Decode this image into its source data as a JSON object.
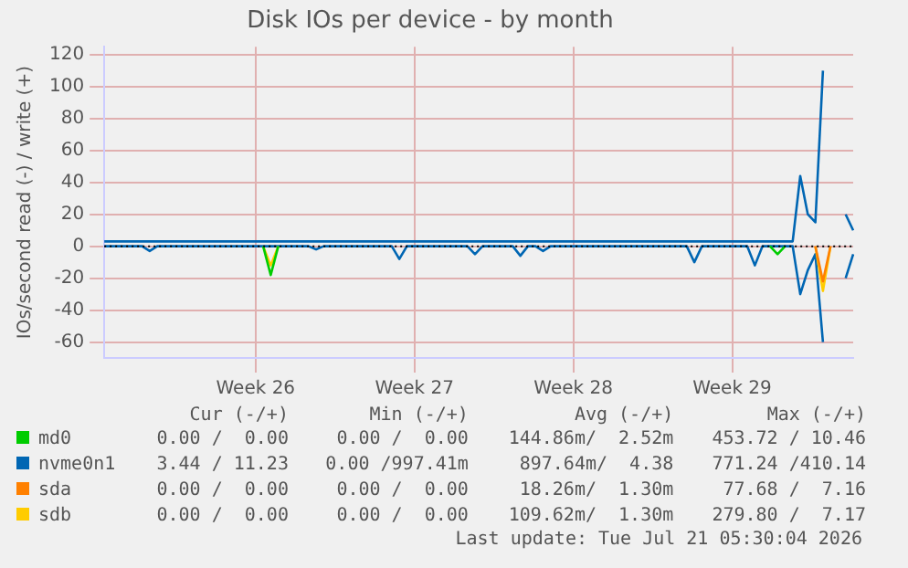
{
  "chart_data": {
    "type": "line",
    "title": "Disk IOs per device - by month",
    "ylabel": "IOs/second read (-) / write (+)",
    "categories": [
      null,
      null,
      null,
      null,
      null,
      null,
      null,
      null,
      null,
      null,
      null,
      null,
      null,
      null,
      null,
      null,
      null,
      null,
      null,
      null,
      "Week 26",
      null,
      null,
      null,
      null,
      null,
      null,
      null,
      null,
      null,
      null,
      null,
      null,
      null,
      null,
      null,
      null,
      null,
      null,
      null,
      null,
      "Week 27",
      null,
      null,
      null,
      null,
      null,
      null,
      null,
      null,
      null,
      null,
      null,
      null,
      null,
      null,
      null,
      null,
      null,
      null,
      null,
      null,
      "Week 28",
      null,
      null,
      null,
      null,
      null,
      null,
      null,
      null,
      null,
      null,
      null,
      null,
      null,
      null,
      null,
      null,
      null,
      null,
      null,
      null,
      "Week 29",
      null,
      null,
      null,
      null,
      null,
      null,
      null,
      null,
      null,
      null,
      null,
      null,
      null,
      null,
      null,
      null
    ],
    "ylim": [
      -70,
      125
    ],
    "yticks": [
      -60,
      -40,
      -20,
      0,
      20,
      40,
      60,
      80,
      100,
      120
    ],
    "grid": true,
    "legend": "bottom",
    "ref_lines": [
      {
        "axis": "y",
        "value": 0,
        "color": "#000000",
        "line_style": "dotted"
      }
    ],
    "series": [
      {
        "name": "md0",
        "color": "#00cc00",
        "values": [
          null,
          null,
          null,
          null,
          null,
          null,
          null,
          null,
          null,
          null,
          null,
          null,
          null,
          null,
          null,
          null,
          null,
          null,
          null,
          null,
          null,
          0,
          -18,
          0,
          null,
          null,
          null,
          null,
          null,
          null,
          null,
          null,
          null,
          null,
          null,
          null,
          null,
          null,
          null,
          null,
          null,
          null,
          null,
          null,
          null,
          null,
          null,
          null,
          null,
          null,
          null,
          null,
          null,
          null,
          null,
          null,
          null,
          null,
          null,
          null,
          null,
          null,
          null,
          null,
          null,
          null,
          null,
          null,
          null,
          null,
          null,
          null,
          null,
          null,
          null,
          null,
          null,
          null,
          null,
          null,
          null,
          null,
          null,
          null,
          null,
          null,
          null,
          null,
          0,
          -5,
          0,
          null,
          null,
          null,
          null,
          null,
          null,
          null,
          null,
          null
        ]
      },
      {
        "name": "nvme0n1",
        "color": "#0066b3",
        "values": [
          0,
          0,
          0,
          0,
          0,
          0,
          -3,
          0,
          0,
          0,
          0,
          0,
          0,
          0,
          0,
          0,
          0,
          0,
          0,
          0,
          0,
          0,
          0,
          0,
          0,
          0,
          0,
          0,
          -2,
          0,
          0,
          0,
          0,
          0,
          0,
          0,
          0,
          0,
          0,
          -8,
          0,
          0,
          0,
          0,
          0,
          0,
          0,
          0,
          0,
          -5,
          0,
          0,
          0,
          0,
          0,
          -6,
          0,
          0,
          -3,
          0,
          0,
          0,
          0,
          0,
          0,
          0,
          0,
          0,
          0,
          0,
          0,
          0,
          0,
          0,
          0,
          0,
          0,
          0,
          -10,
          0,
          0,
          0,
          0,
          0,
          0,
          0,
          -12,
          0,
          0,
          0,
          0,
          0,
          -30,
          -15,
          -5,
          -60,
          null,
          null,
          -20,
          -5
        ]
      },
      {
        "name": "sda",
        "color": "#ff8000",
        "values": [
          null,
          null,
          null,
          null,
          null,
          null,
          null,
          null,
          null,
          null,
          null,
          null,
          null,
          null,
          null,
          null,
          null,
          null,
          null,
          null,
          null,
          null,
          null,
          null,
          null,
          null,
          null,
          null,
          null,
          null,
          null,
          null,
          null,
          null,
          null,
          null,
          null,
          null,
          null,
          null,
          null,
          null,
          null,
          null,
          null,
          null,
          null,
          null,
          null,
          null,
          null,
          null,
          null,
          null,
          null,
          null,
          null,
          null,
          null,
          null,
          null,
          null,
          null,
          null,
          null,
          null,
          null,
          null,
          null,
          null,
          null,
          null,
          null,
          null,
          null,
          null,
          null,
          null,
          null,
          null,
          null,
          null,
          null,
          null,
          null,
          null,
          null,
          null,
          null,
          null,
          null,
          null,
          null,
          null,
          0,
          -22,
          0,
          null,
          null,
          null
        ]
      },
      {
        "name": "sdb",
        "color": "#ffcc00",
        "values": [
          null,
          null,
          null,
          null,
          null,
          null,
          null,
          null,
          null,
          null,
          null,
          null,
          null,
          null,
          null,
          null,
          null,
          null,
          null,
          null,
          null,
          0,
          -12,
          0,
          null,
          null,
          null,
          null,
          null,
          null,
          null,
          null,
          null,
          null,
          null,
          null,
          null,
          null,
          null,
          null,
          null,
          null,
          null,
          null,
          null,
          null,
          null,
          null,
          null,
          null,
          null,
          null,
          null,
          null,
          null,
          null,
          null,
          null,
          null,
          null,
          null,
          null,
          null,
          null,
          null,
          null,
          null,
          null,
          null,
          null,
          null,
          null,
          null,
          null,
          null,
          null,
          null,
          null,
          null,
          null,
          null,
          null,
          null,
          null,
          null,
          null,
          null,
          null,
          null,
          null,
          null,
          null,
          null,
          null,
          0,
          -28,
          0,
          null,
          null,
          null
        ]
      },
      {
        "color": "#0066b3",
        "values": [
          3,
          3,
          3,
          3,
          3,
          3,
          3,
          3,
          3,
          3,
          3,
          3,
          3,
          3,
          3,
          3,
          3,
          3,
          3,
          3,
          3,
          3,
          3,
          3,
          3,
          3,
          3,
          3,
          3,
          3,
          3,
          3,
          3,
          3,
          3,
          3,
          3,
          3,
          3,
          3,
          3,
          3,
          3,
          3,
          3,
          3,
          3,
          3,
          3,
          3,
          3,
          3,
          3,
          3,
          3,
          3,
          3,
          3,
          3,
          3,
          3,
          3,
          3,
          3,
          3,
          3,
          3,
          3,
          3,
          3,
          3,
          3,
          3,
          3,
          3,
          3,
          3,
          3,
          3,
          3,
          3,
          3,
          3,
          3,
          3,
          3,
          3,
          3,
          3,
          3,
          3,
          3,
          44,
          20,
          15,
          110,
          null,
          null,
          20,
          10
        ]
      }
    ],
    "annotations": [
      "Cur (-/+)",
      "Min (-/+)",
      "Avg (-/+)",
      "Max (-/+)",
      "0.00 /  0.00",
      "0.00 /  0.00",
      "144.86m/  2.52m",
      "453.72 / 10.46",
      "3.44 / 11.23",
      "0.00 /997.41m",
      "897.64m/  4.38",
      "771.24 /410.14",
      "0.00 /  0.00",
      "0.00 /  0.00",
      "18.26m/  1.30m",
      "77.68 /  7.16",
      "0.00 /  0.00",
      "0.00 /  0.00",
      "109.62m/  1.30m",
      "279.80 /  7.17",
      "Last update: Tue Jul 21 05:30:04 2026"
    ]
  }
}
